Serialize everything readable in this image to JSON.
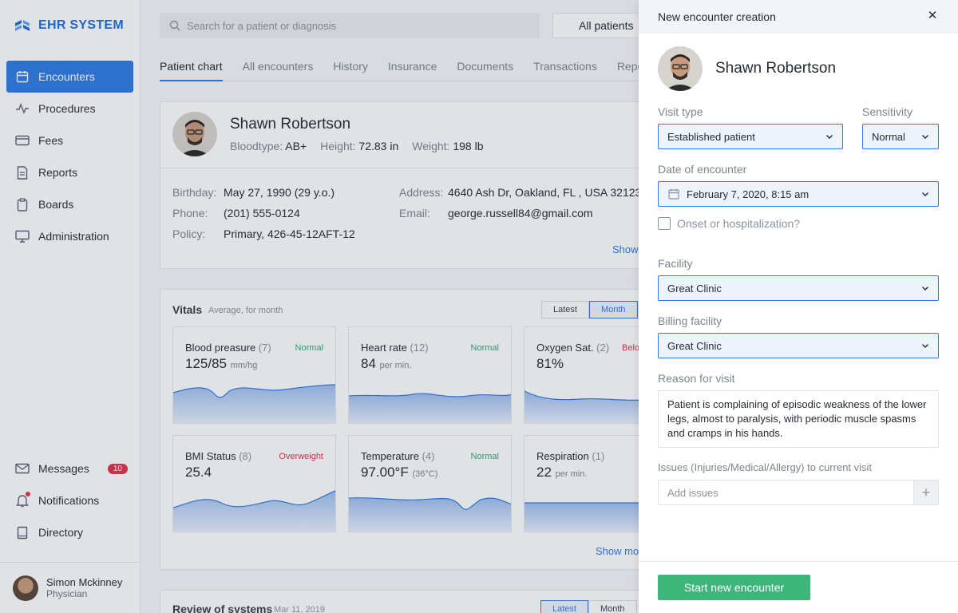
{
  "app": {
    "logo_text": "EHR SYSTEM"
  },
  "sidebar": {
    "items": [
      {
        "label": "Encounters",
        "icon": "calendar-icon"
      },
      {
        "label": "Procedures",
        "icon": "pulse-icon"
      },
      {
        "label": "Fees",
        "icon": "card-icon"
      },
      {
        "label": "Reports",
        "icon": "document-icon"
      },
      {
        "label": "Boards",
        "icon": "clipboard-icon"
      },
      {
        "label": "Administration",
        "icon": "monitor-icon"
      }
    ],
    "bottom": [
      {
        "label": "Messages",
        "icon": "mail-icon",
        "badge": "10"
      },
      {
        "label": "Notifications",
        "icon": "bell-icon"
      },
      {
        "label": "Directory",
        "icon": "book-icon"
      }
    ],
    "user": {
      "name": "Simon Mckinney",
      "role": "Physician"
    }
  },
  "header": {
    "search_placeholder": "Search for a patient or diagnosis",
    "patients_filter": "All patients"
  },
  "tabs": [
    "Patient chart",
    "All encounters",
    "History",
    "Insurance",
    "Documents",
    "Transactions",
    "Repor"
  ],
  "patient": {
    "name": "Shawn Robertson",
    "bloodtype_label": "Bloodtype:",
    "bloodtype": "AB+",
    "height_label": "Height:",
    "height": "72.83 in",
    "weight_label": "Weight:",
    "weight": "198 lb",
    "birthday_label": "Birthday:",
    "birthday": "May 27, 1990 (29 y.o.)",
    "phone_label": "Phone:",
    "phone": "(201) 555-0124",
    "policy_label": "Policy:",
    "policy": "Primary, 426-45-12AFT-12",
    "address_label": "Address:",
    "address": "4640 Ash Dr, Oakland, FL , USA 32123",
    "email_label": "Email:",
    "email": "george.russell84@gmail.com",
    "show_link": "Show"
  },
  "vitals": {
    "title": "Vitals",
    "subtitle": "Average, for month",
    "seg_latest": "Latest",
    "seg_month": "Month",
    "show_more": "Show mor",
    "cards": [
      {
        "name": "Blood preasure",
        "count": "(7)",
        "status": "Normal",
        "value": "125/85",
        "unit": "mm/hg"
      },
      {
        "name": "Heart rate",
        "count": "(12)",
        "status": "Normal",
        "value": "84",
        "unit": "per min."
      },
      {
        "name": "Oxygen Sat.",
        "count": "(2)",
        "status": "Belo",
        "value": "81%",
        "unit": ""
      },
      {
        "name": "BMI Status",
        "count": "(8)",
        "status": "Overweight",
        "value": "25.4",
        "unit": ""
      },
      {
        "name": "Temperature",
        "count": "(4)",
        "status": "Normal",
        "value": "97.00°F",
        "unit": "(36°C)"
      },
      {
        "name": "Respiration",
        "count": "(1)",
        "status": "",
        "value": "22",
        "unit": "per min."
      }
    ]
  },
  "review": {
    "title": "Review of systems",
    "date": "Mar 11, 2019",
    "seg_latest": "Latest",
    "seg_month": "Month"
  },
  "panel": {
    "title": "New encounter creation",
    "patient_name": "Shawn Robertson",
    "visit_type_label": "Visit type",
    "visit_type": "Established patient",
    "sensitivity_label": "Sensitivity",
    "sensitivity": "Normal",
    "date_label": "Date of encounter",
    "date": "February 7, 2020, 8:15 am",
    "onset_label": "Onset or hospitalization?",
    "facility_label": "Facility",
    "facility": "Great Clinic",
    "billing_label": "Billing facility",
    "billing": "Great Clinic",
    "reason_label": "Reason for visit",
    "reason": "Patient is complaining of episodic weakness of the lower legs, almost to paralysis, with periodic muscle spasms and cramps in his hands.",
    "issues_label": "Issues (Injuries/Medical/Allergy) to current visit",
    "issues_placeholder": "Add issues",
    "start_button": "Start new encounter"
  },
  "colors": {
    "accent": "#2f7ce3",
    "success": "#3eb57a",
    "danger": "#e0344f"
  }
}
